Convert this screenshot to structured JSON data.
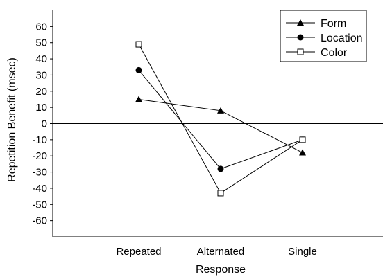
{
  "chart_data": {
    "type": "line",
    "categories": [
      "Repeated",
      "Alternated",
      "Single"
    ],
    "series": [
      {
        "name": "Form",
        "marker": "triangle",
        "values": [
          15,
          8,
          -18
        ]
      },
      {
        "name": "Location",
        "marker": "circle",
        "values": [
          33,
          -28,
          -10
        ]
      },
      {
        "name": "Color",
        "marker": "square-open",
        "values": [
          49,
          -43,
          -10
        ]
      }
    ],
    "xlabel": "Response",
    "ylabel": "Repetition Benefit (msec)",
    "ylim": [
      -70,
      70
    ],
    "yticks": [
      60,
      50,
      40,
      30,
      20,
      10,
      0,
      -10,
      -20,
      -30,
      -40,
      -50,
      -60
    ],
    "ytick_labels": [
      "60",
      "50",
      "40",
      "30",
      "20",
      "10",
      "0",
      "-10",
      "-20",
      "-30",
      "-40",
      "-50",
      "-60"
    ],
    "zero_line": true,
    "grid": false,
    "legend_position": "top-right",
    "colors": {
      "line": "#000000",
      "background": "#ffffff"
    }
  }
}
